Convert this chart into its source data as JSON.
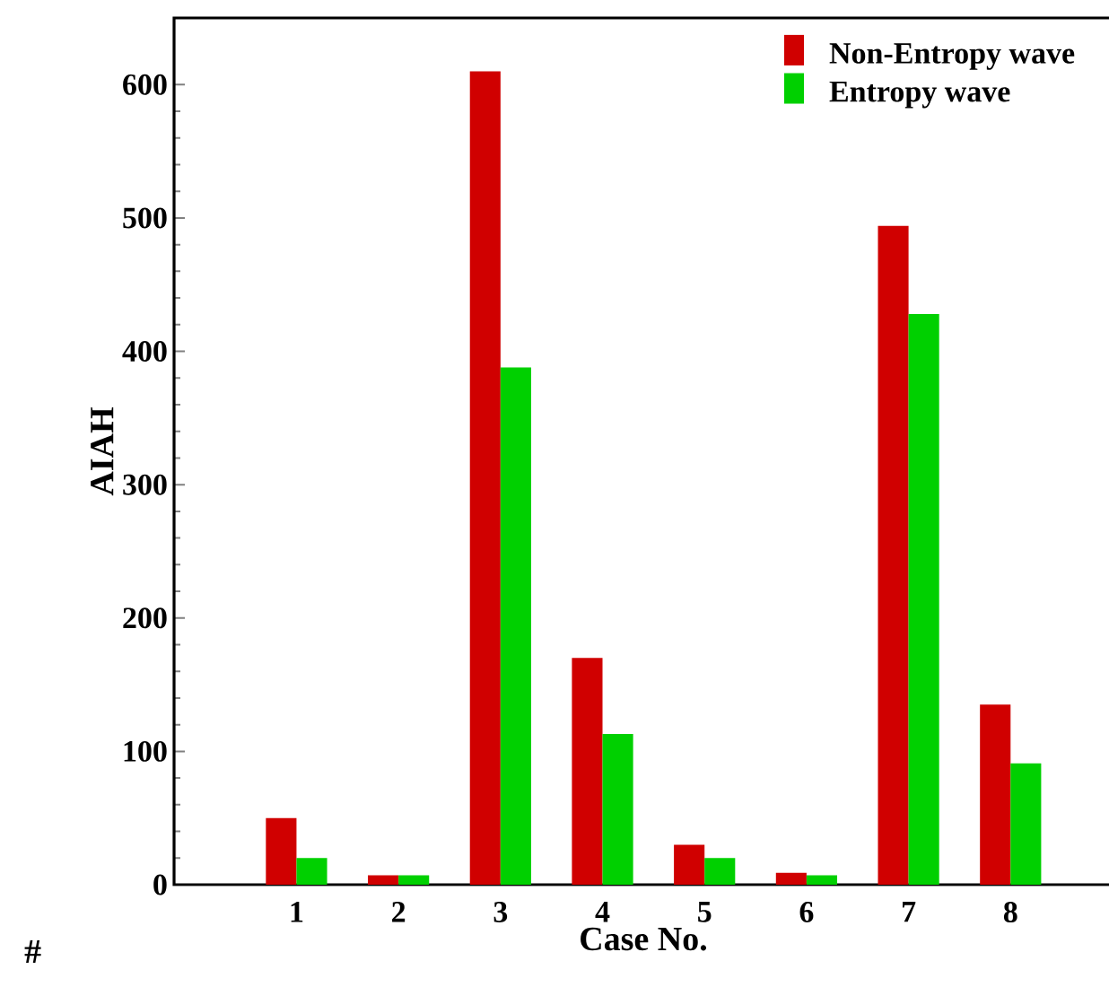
{
  "chart_data": {
    "type": "bar",
    "categories": [
      "1",
      "2",
      "3",
      "4",
      "5",
      "6",
      "7",
      "8"
    ],
    "series": [
      {
        "name": "Non-Entropy wave",
        "color": "#d00000",
        "values": [
          50,
          7,
          610,
          170,
          30,
          9,
          494,
          135
        ]
      },
      {
        "name": "Entropy wave",
        "color": "#00d000",
        "values": [
          20,
          7,
          388,
          113,
          20,
          7,
          428,
          91
        ]
      }
    ],
    "xlabel": "Case No.",
    "ylabel": "AIAH",
    "ylim": [
      0,
      650
    ],
    "yticks": [
      0,
      100,
      200,
      300,
      400,
      500,
      600
    ],
    "legend": "top right",
    "grid": false,
    "annotations": [
      "#"
    ]
  }
}
